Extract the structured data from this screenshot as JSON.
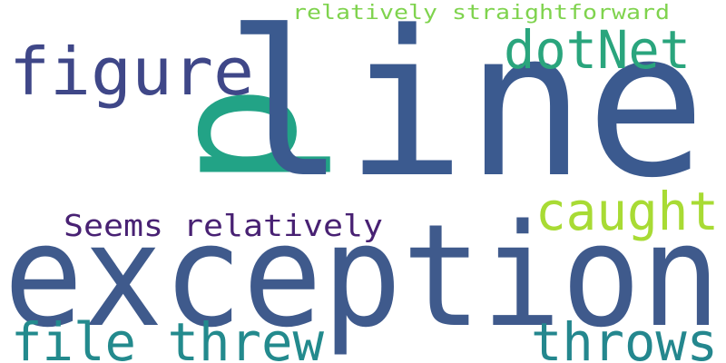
{
  "words": [
    {
      "id": "word-line",
      "text": "line",
      "color": "#3b5a8f",
      "rotated": false
    },
    {
      "id": "word-exception",
      "text": "exception",
      "color": "#3f5a8c",
      "rotated": false
    },
    {
      "id": "word-p",
      "text": "p",
      "color": "#22a386",
      "rotated": true
    },
    {
      "id": "word-figure",
      "text": "figure",
      "color": "#3f4788",
      "rotated": false
    },
    {
      "id": "word-dotnet",
      "text": "dotNet",
      "color": "#2aa57d",
      "rotated": false
    },
    {
      "id": "word-relatively-straightforward",
      "text": "relatively straightforward",
      "color": "#7fd34e",
      "rotated": false
    },
    {
      "id": "word-caught",
      "text": "caught",
      "color": "#a8db34",
      "rotated": false
    },
    {
      "id": "word-seems-relatively",
      "text": "Seems relatively",
      "color": "#482173",
      "rotated": false
    },
    {
      "id": "word-file-threw",
      "text": "file threw",
      "color": "#238a8d",
      "rotated": false
    },
    {
      "id": "word-throws",
      "text": "throws",
      "color": "#24878e",
      "rotated": false
    }
  ]
}
